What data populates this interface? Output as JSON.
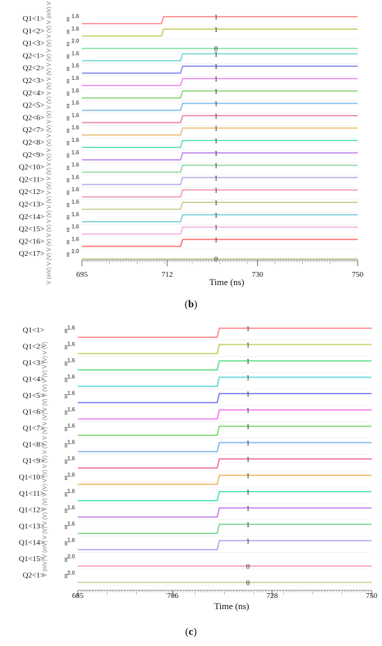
{
  "chart_data": [
    {
      "type": "line",
      "panel": "b",
      "caption_prefix": "(",
      "caption_letter": "b",
      "caption_suffix": ")",
      "xlabel": "Time (ns)",
      "xlim": [
        695,
        750
      ],
      "xticks": [
        "695",
        "712",
        "730",
        "750"
      ],
      "ytitle": "V (mV) V (V) V (V) V (V) V (V) V (V) V (V) V (V) V (V) V (V) V (V) V (V) V (V) V (V) V (V) V (V) V (V) V (V) V (mV) V (V)",
      "transition_time_ns": [
        711,
        714.8
      ],
      "readout_time_ns": 715.5,
      "signals": [
        {
          "name": "Q1<1>",
          "ytick": "1.6",
          "value": "1",
          "step": true,
          "t_switch": 711.0,
          "color": "#ff8a8a"
        },
        {
          "name": "Q1<2>",
          "ytick": "1.6",
          "value": "1",
          "step": true,
          "t_switch": 711.0,
          "color": "#c8cf6a"
        },
        {
          "name": "Q1<3>",
          "ytick": "2.0",
          "value": "0",
          "step": false,
          "t_switch": null,
          "color": "#7fe2a0"
        },
        {
          "name": "Q2<1>",
          "ytick": "1.6",
          "value": "1",
          "step": true,
          "t_switch": 714.8,
          "color": "#6fd8d8"
        },
        {
          "name": "Q2<2>",
          "ytick": "1.6",
          "value": "1",
          "step": true,
          "t_switch": 714.8,
          "color": "#8c8cf0"
        },
        {
          "name": "Q2<3>",
          "ytick": "1.6",
          "value": "1",
          "step": true,
          "t_switch": 714.8,
          "color": "#f08cf0"
        },
        {
          "name": "Q2<4>",
          "ytick": "1.6",
          "value": "1",
          "step": true,
          "t_switch": 714.8,
          "color": "#8fd87f"
        },
        {
          "name": "Q2<5>",
          "ytick": "1.6",
          "value": "1",
          "step": true,
          "t_switch": 714.8,
          "color": "#7fbff0"
        },
        {
          "name": "Q2<6>",
          "ytick": "1.6",
          "value": "1",
          "step": true,
          "t_switch": 714.8,
          "color": "#f07fb0"
        },
        {
          "name": "Q2<7>",
          "ytick": "1.6",
          "value": "1",
          "step": true,
          "t_switch": 714.8,
          "color": "#f0c07f"
        },
        {
          "name": "Q2<8>",
          "ytick": "1.6",
          "value": "1",
          "step": true,
          "t_switch": 714.8,
          "color": "#5fe0c0"
        },
        {
          "name": "Q2<9>",
          "ytick": "1.6",
          "value": "1",
          "step": true,
          "t_switch": 714.8,
          "color": "#c08cf0"
        },
        {
          "name": "Q2<10>",
          "ytick": "1.6",
          "value": "1",
          "step": true,
          "t_switch": 714.8,
          "color": "#8fd8a0"
        },
        {
          "name": "Q2<11>",
          "ytick": "1.6",
          "value": "1",
          "step": true,
          "t_switch": 714.8,
          "color": "#b0b0f0"
        },
        {
          "name": "Q2<12>",
          "ytick": "1.6",
          "value": "1",
          "step": true,
          "t_switch": 714.8,
          "color": "#f0a0b0"
        },
        {
          "name": "Q2<13>",
          "ytick": "1.6",
          "value": "1",
          "step": true,
          "t_switch": 714.8,
          "color": "#c8d08f"
        },
        {
          "name": "Q2<14>",
          "ytick": "1.6",
          "value": "1",
          "step": true,
          "t_switch": 714.8,
          "color": "#7fd0d8"
        },
        {
          "name": "Q2<15>",
          "ytick": "1.6",
          "value": "1",
          "step": true,
          "t_switch": 714.8,
          "color": "#f0b0e0"
        },
        {
          "name": "Q2<16>",
          "ytick": "1.6",
          "value": "1",
          "step": true,
          "t_switch": 714.8,
          "color": "#ff7070"
        },
        {
          "name": "Q2<17>",
          "ytick": "2.0",
          "value": "0",
          "step": false,
          "t_switch": null,
          "color": "#d0d8a0"
        }
      ]
    },
    {
      "type": "line",
      "panel": "c",
      "caption_prefix": "(",
      "caption_letter": "c",
      "caption_suffix": ")",
      "xlabel": "Time (ns)",
      "xlim": [
        685,
        750
      ],
      "xticks": [
        "685",
        "706",
        "728",
        "750"
      ],
      "ytitle": "V (mV) V (mV) V (V) V (V) V (V) V (V) V (V) V (V) V (V) V (V) V (V) V (V) V (V) V (V) V (V) V (V)",
      "readout_time_ns": 721.0,
      "signals": [
        {
          "name": "Q1<1>",
          "ytick": "1.6",
          "value": "1",
          "step": true,
          "t_switch": 716.0,
          "color": "#ff8a8a"
        },
        {
          "name": "Q1<2>",
          "ytick": "1.6",
          "value": "1",
          "step": true,
          "t_switch": 716.0,
          "color": "#c8cf6a"
        },
        {
          "name": "Q1<3>",
          "ytick": "1.6",
          "value": "1",
          "step": true,
          "t_switch": 716.0,
          "color": "#5fe08a"
        },
        {
          "name": "Q1<4>",
          "ytick": "1.6",
          "value": "1",
          "step": true,
          "t_switch": 716.0,
          "color": "#5fd8d8"
        },
        {
          "name": "Q1<5>",
          "ytick": "1.6",
          "value": "1",
          "step": true,
          "t_switch": 716.0,
          "color": "#7c7cf0"
        },
        {
          "name": "Q1<6>",
          "ytick": "1.6",
          "value": "1",
          "step": true,
          "t_switch": 716.0,
          "color": "#f07cf0"
        },
        {
          "name": "Q1<7>",
          "ytick": "1.6",
          "value": "1",
          "step": true,
          "t_switch": 716.0,
          "color": "#7fd86f"
        },
        {
          "name": "Q1<8>",
          "ytick": "1.6",
          "value": "1",
          "step": true,
          "t_switch": 716.0,
          "color": "#7fb8f0"
        },
        {
          "name": "Q1<9>",
          "ytick": "1.6",
          "value": "1",
          "step": true,
          "t_switch": 716.0,
          "color": "#f06fa8"
        },
        {
          "name": "Q1<10>",
          "ytick": "1.6",
          "value": "1",
          "step": true,
          "t_switch": 716.0,
          "color": "#f0b860"
        },
        {
          "name": "Q1<11>",
          "ytick": "1.6",
          "value": "1",
          "step": true,
          "t_switch": 716.0,
          "color": "#4fe0b8"
        },
        {
          "name": "Q1<12>",
          "ytick": "1.6",
          "value": "1",
          "step": true,
          "t_switch": 716.0,
          "color": "#c07cf0"
        },
        {
          "name": "Q1<13>",
          "ytick": "1.6",
          "value": "1",
          "step": true,
          "t_switch": 716.0,
          "color": "#7fd890"
        },
        {
          "name": "Q1<14>",
          "ytick": "1.6",
          "value": "1",
          "step": true,
          "t_switch": 716.0,
          "color": "#a8a8f0"
        },
        {
          "name": "Q1<15>",
          "ytick": "2.0",
          "value": "0",
          "step": false,
          "t_switch": null,
          "color": "#f0a0b0"
        },
        {
          "name": "Q2<1>",
          "ytick": "2.0",
          "value": "0",
          "step": false,
          "t_switch": null,
          "color": "#c8d090"
        }
      ]
    }
  ]
}
